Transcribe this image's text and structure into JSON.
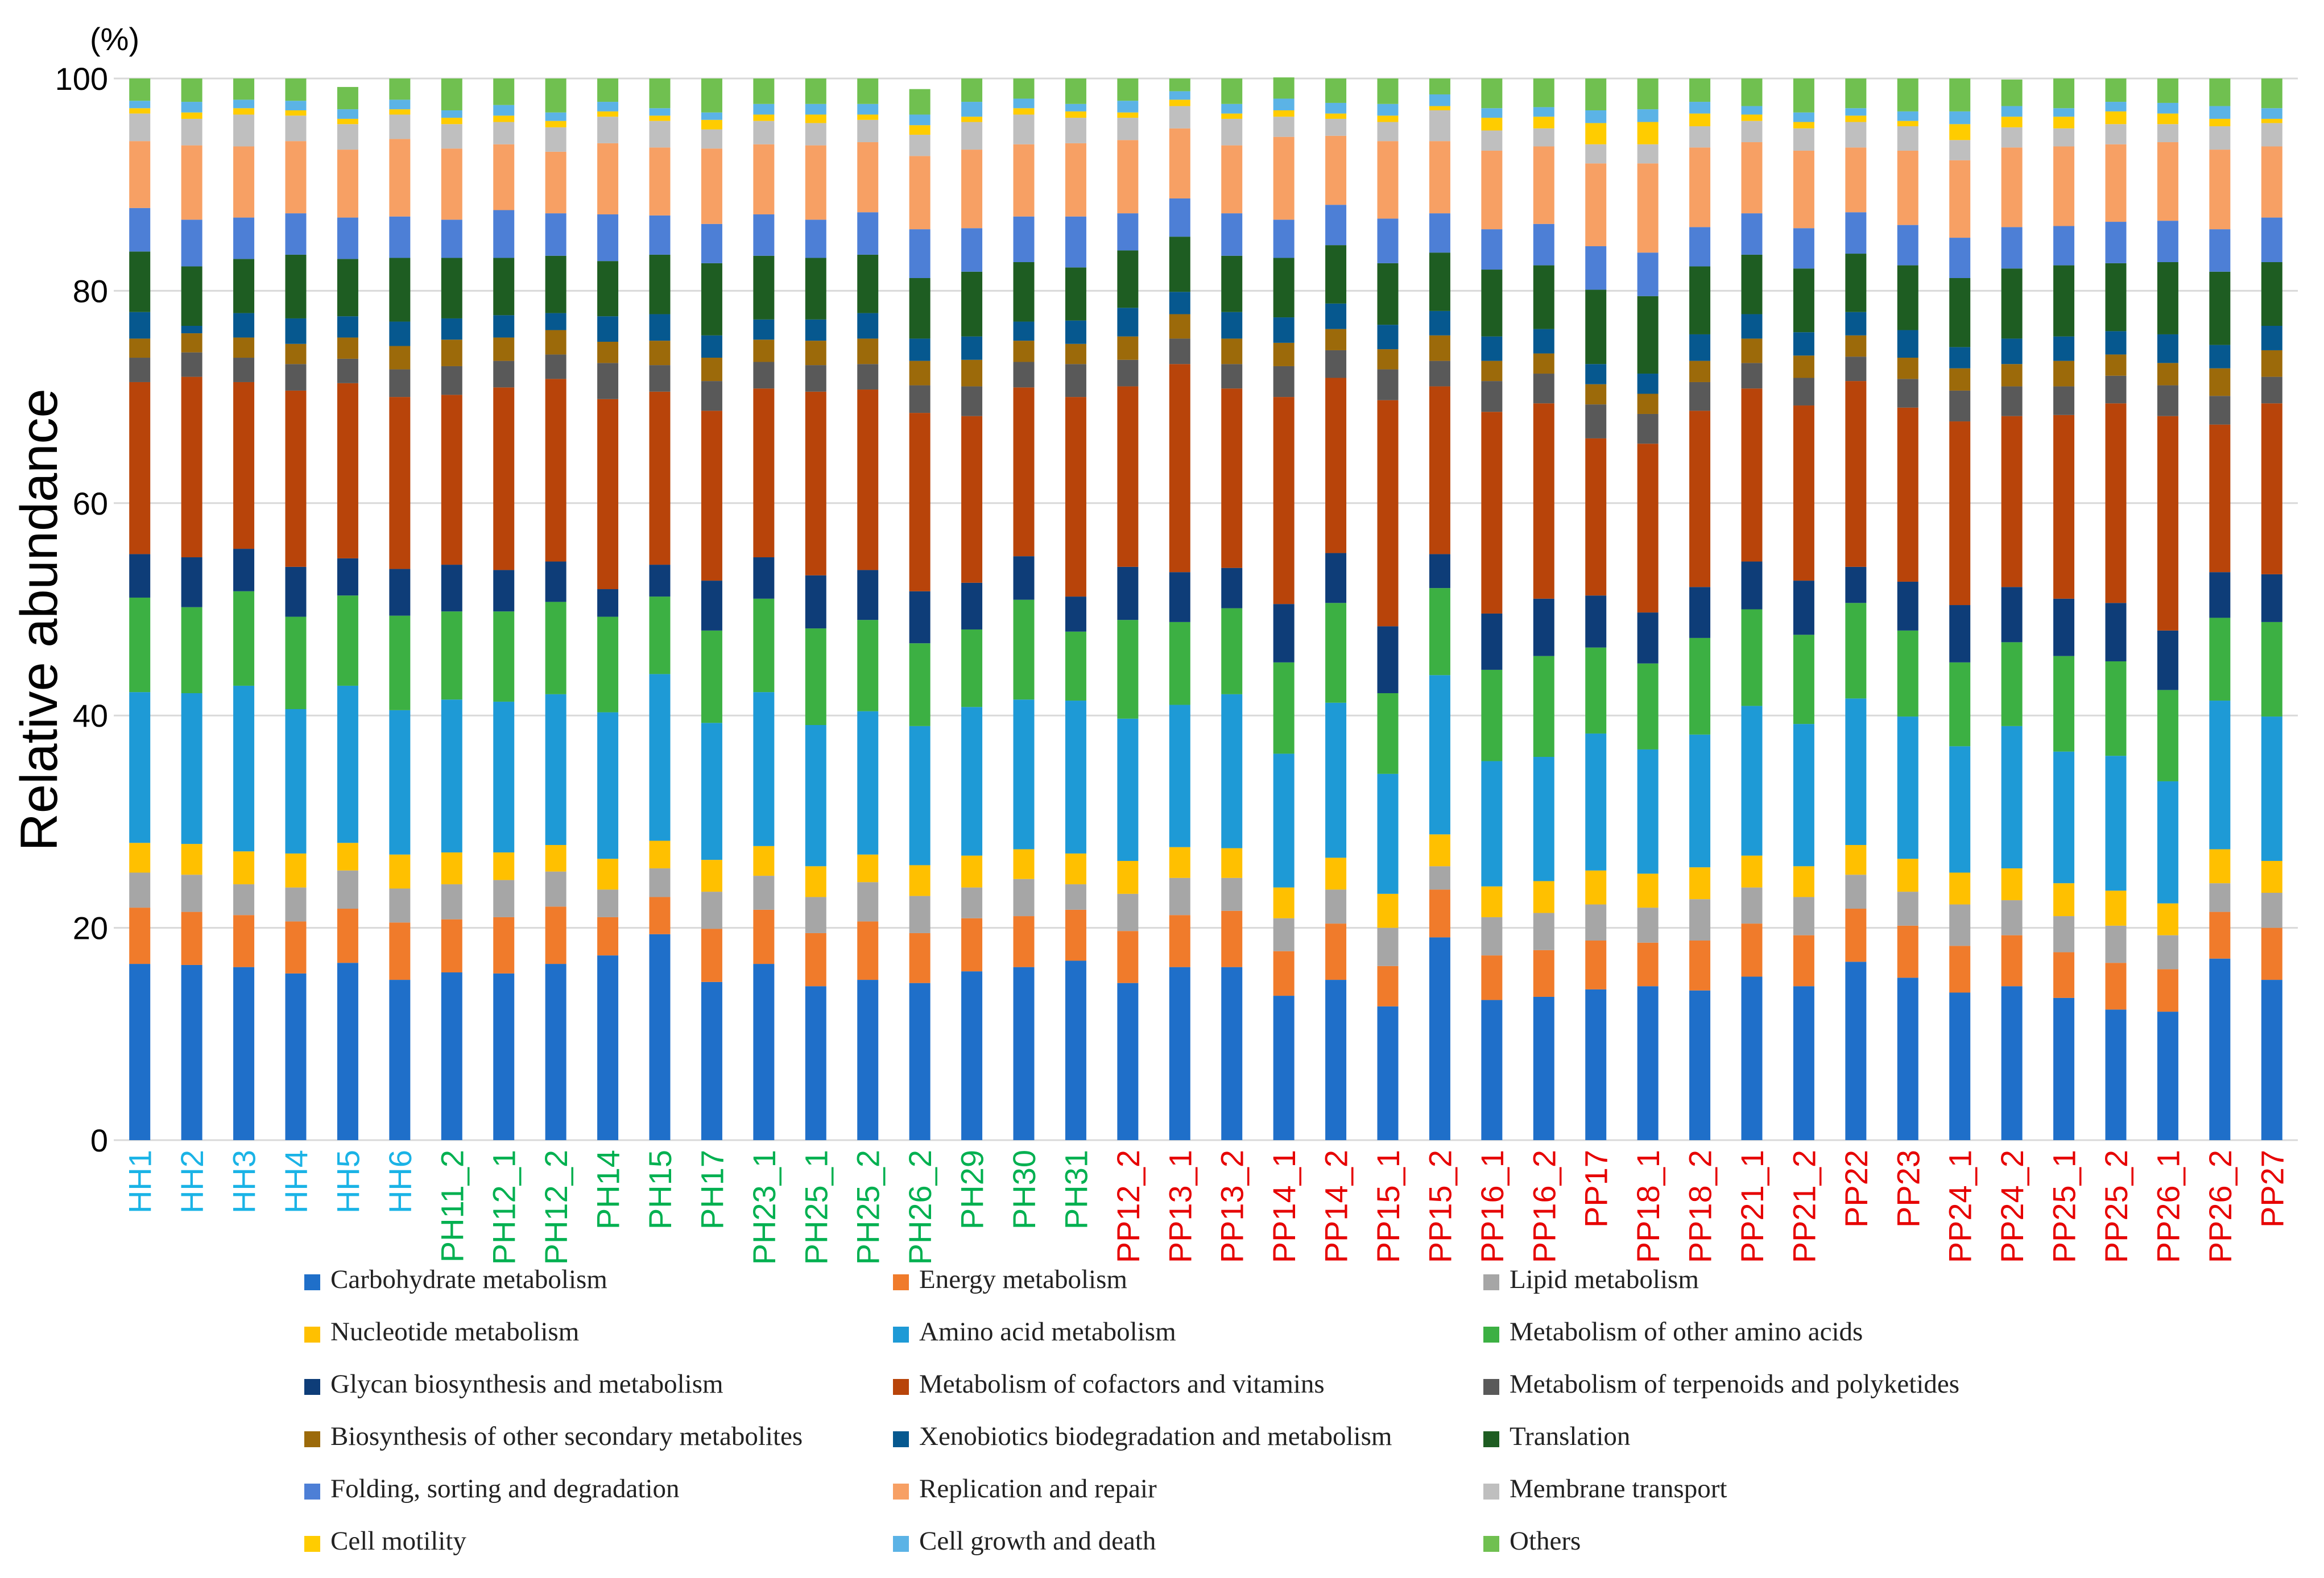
{
  "chart_data": {
    "type": "bar",
    "stacked": true,
    "title": "",
    "ylabel": "Relative abundance",
    "yunit": "(%)",
    "ylim": [
      0,
      100
    ],
    "yticks": [
      0,
      20,
      40,
      60,
      80,
      100
    ],
    "grid": true,
    "legend_position": "bottom",
    "categories": [
      "HH1",
      "HH2",
      "HH3",
      "HH4",
      "HH5",
      "HH6",
      "PH11_2",
      "PH12_1",
      "PH12_2",
      "PH14",
      "PH15",
      "PH17",
      "PH23_1",
      "PH25_1",
      "PH25_2",
      "PH26_2",
      "PH29",
      "PH30",
      "PH31",
      "PP12_2",
      "PP13_1",
      "PP13_2",
      "PP14_1",
      "PP14_2",
      "PP15_1",
      "PP15_2",
      "PP16_1",
      "PP16_2",
      "PP17",
      "PP18_1",
      "PP18_2",
      "PP21_1",
      "PP21_2",
      "PP22",
      "PP23",
      "PP24_1",
      "PP24_2",
      "PP25_1",
      "PP25_2",
      "PP26_1",
      "PP26_2",
      "PP27"
    ],
    "category_groups": [
      "HH",
      "HH",
      "HH",
      "HH",
      "HH",
      "HH",
      "PH",
      "PH",
      "PH",
      "PH",
      "PH",
      "PH",
      "PH",
      "PH",
      "PH",
      "PH",
      "PH",
      "PH",
      "PH",
      "PP",
      "PP",
      "PP",
      "PP",
      "PP",
      "PP",
      "PP",
      "PP",
      "PP",
      "PP",
      "PP",
      "PP",
      "PP",
      "PP",
      "PP",
      "PP",
      "PP",
      "PP",
      "PP",
      "PP",
      "PP",
      "PP",
      "PP"
    ],
    "group_colors": {
      "HH": "#1ab3e6",
      "PH": "#00b050",
      "PP": "#e60000"
    },
    "series": [
      {
        "name": "Carbohydrate metabolism",
        "color": "#1f6fc9",
        "values": [
          16.6,
          16.5,
          16.3,
          15.7,
          16.7,
          15.1,
          15.8,
          15.7,
          16.6,
          17.4,
          19.4,
          14.9,
          16.6,
          14.5,
          15.1,
          14.8,
          15.9,
          16.3,
          16.9,
          14.8,
          16.3,
          16.3,
          13.6,
          15.1,
          12.6,
          19.1,
          13.2,
          13.5,
          14.2,
          14.5,
          14.1,
          15.4,
          14.5,
          16.8,
          15.3,
          13.9,
          14.5,
          13.4,
          12.3,
          12.1,
          17.1,
          15.1
        ]
      },
      {
        "name": "Energy metabolism",
        "color": "#f07b2b",
        "values": [
          5.3,
          5.0,
          4.9,
          4.9,
          5.1,
          5.4,
          5.0,
          5.3,
          5.4,
          3.6,
          3.5,
          5.0,
          5.1,
          5.0,
          5.5,
          4.7,
          5.0,
          4.8,
          4.8,
          4.9,
          4.9,
          5.3,
          4.2,
          5.3,
          3.8,
          4.5,
          4.2,
          4.4,
          4.6,
          4.1,
          4.7,
          5.0,
          4.8,
          5.0,
          4.9,
          4.4,
          4.8,
          4.3,
          4.4,
          4.0,
          4.4,
          4.9
        ]
      },
      {
        "name": "Lipid metabolism",
        "color": "#a6a6a6",
        "values": [
          3.3,
          3.5,
          2.9,
          3.2,
          3.6,
          3.2,
          3.3,
          3.5,
          3.3,
          2.6,
          2.7,
          3.5,
          3.2,
          3.4,
          3.7,
          3.5,
          2.9,
          3.5,
          2.4,
          3.5,
          3.5,
          3.1,
          3.1,
          3.2,
          3.6,
          2.2,
          3.6,
          3.5,
          3.4,
          3.3,
          3.9,
          3.4,
          3.6,
          3.2,
          3.2,
          3.9,
          3.3,
          3.4,
          3.5,
          3.2,
          2.7,
          3.3
        ]
      },
      {
        "name": "Nucleotide metabolism",
        "color": "#ffc000",
        "values": [
          2.8,
          2.9,
          3.1,
          3.2,
          2.6,
          3.2,
          3.0,
          2.6,
          2.5,
          2.9,
          2.6,
          3.0,
          2.8,
          2.9,
          2.6,
          2.9,
          3.0,
          2.8,
          2.9,
          3.1,
          2.9,
          2.8,
          2.9,
          3.0,
          3.2,
          3.0,
          2.9,
          3.0,
          3.2,
          3.2,
          3.0,
          3.0,
          2.9,
          2.8,
          3.1,
          3.0,
          3.0,
          3.1,
          3.3,
          3.0,
          3.2,
          3.0
        ]
      },
      {
        "name": "Amino acid metabolism",
        "color": "#1e9ad6",
        "values": [
          14.2,
          14.2,
          15.6,
          13.6,
          14.8,
          13.6,
          14.4,
          14.2,
          14.2,
          13.8,
          15.7,
          12.9,
          14.5,
          13.3,
          13.5,
          13.1,
          14.0,
          14.1,
          14.4,
          13.4,
          13.4,
          14.5,
          12.6,
          14.6,
          11.3,
          15.0,
          11.8,
          11.7,
          12.9,
          11.7,
          12.5,
          14.1,
          13.4,
          13.8,
          13.4,
          11.9,
          13.4,
          12.4,
          12.7,
          11.5,
          14.0,
          13.6
        ]
      },
      {
        "name": "Metabolism of other amino acids",
        "color": "#3cb043",
        "values": [
          8.9,
          8.1,
          8.9,
          8.7,
          8.5,
          8.9,
          8.3,
          8.5,
          8.7,
          9.0,
          7.3,
          8.7,
          8.8,
          9.1,
          8.6,
          7.8,
          7.3,
          9.4,
          6.5,
          9.3,
          7.8,
          8.1,
          8.6,
          9.4,
          7.6,
          8.2,
          8.6,
          9.5,
          8.1,
          8.1,
          9.1,
          9.1,
          8.4,
          9.0,
          8.1,
          7.9,
          7.9,
          9.0,
          8.9,
          8.6,
          7.8,
          8.9
        ]
      },
      {
        "name": "Glycan biosynthesis and metabolism",
        "color": "#0e3d78",
        "values": [
          4.1,
          4.7,
          4.0,
          4.7,
          3.5,
          4.4,
          4.4,
          3.9,
          3.8,
          2.6,
          3.0,
          4.7,
          3.9,
          5.0,
          4.7,
          4.9,
          4.4,
          4.1,
          3.3,
          5.0,
          4.7,
          3.8,
          5.5,
          4.7,
          6.3,
          3.2,
          5.3,
          5.4,
          4.9,
          4.8,
          4.8,
          4.5,
          5.1,
          3.4,
          4.6,
          5.4,
          5.2,
          5.4,
          5.5,
          5.6,
          4.3,
          4.5
        ]
      },
      {
        "name": "Metabolism of cofactors and vitamins",
        "color": "#b8440a",
        "values": [
          16.2,
          17.0,
          15.7,
          16.6,
          16.5,
          16.2,
          16.0,
          17.2,
          17.2,
          17.9,
          16.3,
          16.0,
          15.9,
          17.3,
          17.0,
          16.8,
          15.7,
          15.9,
          18.8,
          17.0,
          19.6,
          16.9,
          19.5,
          16.5,
          21.3,
          15.8,
          19.0,
          18.4,
          14.8,
          15.9,
          16.6,
          16.3,
          16.5,
          17.5,
          16.4,
          17.3,
          16.1,
          17.3,
          18.8,
          20.2,
          13.9,
          16.1
        ]
      },
      {
        "name": "Metabolism of terpenoids and polyketides",
        "color": "#595959",
        "values": [
          2.3,
          2.3,
          2.3,
          2.5,
          2.3,
          2.6,
          2.7,
          2.5,
          2.3,
          3.4,
          2.5,
          2.8,
          2.5,
          2.5,
          2.4,
          2.6,
          2.8,
          2.4,
          3.1,
          2.5,
          2.4,
          2.3,
          2.9,
          2.6,
          2.9,
          2.4,
          2.9,
          2.8,
          3.2,
          2.8,
          2.7,
          2.4,
          2.6,
          2.3,
          2.7,
          2.9,
          2.8,
          2.7,
          2.6,
          2.9,
          2.7,
          2.5
        ]
      },
      {
        "name": "Biosynthesis of other secondary metabolites",
        "color": "#9c6a0a",
        "values": [
          1.8,
          1.8,
          1.9,
          1.9,
          2.0,
          2.2,
          2.5,
          2.2,
          2.3,
          2.0,
          2.3,
          2.2,
          2.1,
          2.3,
          2.4,
          2.3,
          2.5,
          2.0,
          1.9,
          2.2,
          2.3,
          2.4,
          2.2,
          2.0,
          1.9,
          2.4,
          1.9,
          1.9,
          1.9,
          1.9,
          2.0,
          2.3,
          2.1,
          2.0,
          2.0,
          2.1,
          2.1,
          2.4,
          2.0,
          2.1,
          2.6,
          2.5
        ]
      },
      {
        "name": "Xenobiotics biodegradation and metabolism",
        "color": "#06588f",
        "values": [
          2.5,
          0.7,
          2.3,
          2.4,
          2.0,
          2.3,
          2.0,
          2.1,
          1.6,
          2.4,
          2.5,
          2.1,
          1.9,
          2.0,
          2.4,
          2.1,
          2.2,
          1.8,
          2.2,
          2.7,
          2.1,
          2.5,
          2.4,
          2.4,
          2.3,
          2.3,
          2.3,
          2.3,
          1.9,
          1.9,
          2.5,
          2.3,
          2.2,
          2.2,
          2.6,
          2.0,
          2.4,
          2.3,
          2.2,
          2.7,
          2.2,
          2.3
        ]
      },
      {
        "name": "Translation",
        "color": "#1e5d22",
        "values": [
          5.7,
          5.6,
          5.1,
          6.0,
          5.4,
          6.0,
          5.7,
          5.4,
          5.4,
          5.2,
          5.6,
          6.8,
          6.0,
          5.8,
          5.5,
          5.7,
          6.1,
          5.6,
          5.0,
          5.4,
          5.2,
          5.3,
          5.6,
          5.5,
          5.8,
          5.5,
          6.3,
          6.0,
          7.0,
          7.3,
          6.4,
          5.6,
          6.0,
          5.5,
          6.1,
          6.5,
          6.6,
          6.7,
          6.4,
          6.8,
          6.9,
          6.0
        ]
      },
      {
        "name": "Folding, sorting and degradation",
        "color": "#4d7fd6",
        "values": [
          4.1,
          4.4,
          3.9,
          3.9,
          3.9,
          3.9,
          3.6,
          4.5,
          4.0,
          4.4,
          3.7,
          3.7,
          3.9,
          3.6,
          4.0,
          4.6,
          4.1,
          4.3,
          4.8,
          3.5,
          3.6,
          4.0,
          3.6,
          3.8,
          4.2,
          3.7,
          3.8,
          3.9,
          4.1,
          4.1,
          3.7,
          3.9,
          3.8,
          3.9,
          3.8,
          3.8,
          3.9,
          3.7,
          3.9,
          3.9,
          4.0,
          4.2
        ]
      },
      {
        "name": "Replication and repair",
        "color": "#f7a064",
        "values": [
          6.3,
          7.0,
          6.7,
          6.8,
          6.4,
          7.3,
          6.7,
          6.2,
          5.8,
          6.7,
          6.4,
          7.1,
          6.6,
          7.0,
          6.6,
          6.9,
          7.4,
          6.8,
          6.9,
          6.9,
          6.6,
          6.4,
          7.8,
          6.5,
          7.3,
          6.8,
          7.4,
          7.3,
          7.8,
          8.4,
          7.5,
          6.7,
          7.3,
          6.1,
          7.0,
          7.3,
          7.5,
          7.5,
          7.3,
          7.4,
          7.5,
          6.7
        ]
      },
      {
        "name": "Membrane transport",
        "color": "#bfbfbf",
        "values": [
          2.6,
          2.5,
          3.0,
          2.4,
          2.4,
          2.3,
          2.3,
          2.1,
          2.3,
          2.5,
          2.5,
          1.8,
          2.2,
          2.1,
          2.1,
          2.0,
          2.6,
          2.8,
          2.4,
          2.1,
          2.1,
          2.5,
          1.9,
          1.6,
          1.8,
          2.9,
          1.9,
          1.7,
          1.8,
          1.8,
          2.0,
          2.0,
          2.1,
          2.4,
          2.3,
          1.9,
          1.9,
          1.7,
          1.9,
          1.7,
          2.2,
          2.2
        ]
      },
      {
        "name": "Cell motility",
        "color": "#ffcc00",
        "values": [
          0.5,
          0.6,
          0.6,
          0.5,
          0.5,
          0.5,
          0.6,
          0.6,
          0.6,
          0.5,
          0.5,
          0.9,
          0.6,
          0.8,
          0.5,
          0.9,
          0.5,
          0.6,
          0.6,
          0.5,
          0.6,
          0.5,
          0.6,
          0.5,
          0.6,
          0.4,
          1.2,
          1.1,
          2.0,
          2.1,
          1.2,
          0.6,
          0.6,
          0.6,
          0.5,
          1.5,
          1.0,
          1.1,
          1.2,
          1.0,
          0.7,
          0.4
        ]
      },
      {
        "name": "Cell growth and death",
        "color": "#5bb3e6",
        "values": [
          0.7,
          1.0,
          0.8,
          0.9,
          0.9,
          0.9,
          0.7,
          1.0,
          0.8,
          0.9,
          0.7,
          0.7,
          1.0,
          1.0,
          1.0,
          1.0,
          1.4,
          0.9,
          0.7,
          1.1,
          0.8,
          0.9,
          1.1,
          1.0,
          1.1,
          1.1,
          0.9,
          0.9,
          1.2,
          1.2,
          1.1,
          0.8,
          0.9,
          0.7,
          0.9,
          1.2,
          1.0,
          0.8,
          0.9,
          1.0,
          1.2,
          1.0
        ]
      },
      {
        "name": "Others",
        "color": "#70c050",
        "values": [
          2.1,
          2.2,
          2.0,
          2.1,
          2.1,
          2.0,
          3.0,
          2.5,
          3.2,
          2.2,
          2.8,
          3.2,
          2.4,
          2.4,
          2.4,
          2.4,
          2.2,
          1.9,
          2.4,
          2.1,
          1.2,
          2.4,
          2.0,
          2.3,
          2.4,
          1.5,
          2.8,
          2.7,
          3.0,
          2.9,
          2.2,
          2.6,
          3.2,
          2.8,
          3.1,
          3.1,
          2.5,
          2.8,
          2.2,
          2.3,
          2.6,
          2.8
        ]
      }
    ]
  }
}
